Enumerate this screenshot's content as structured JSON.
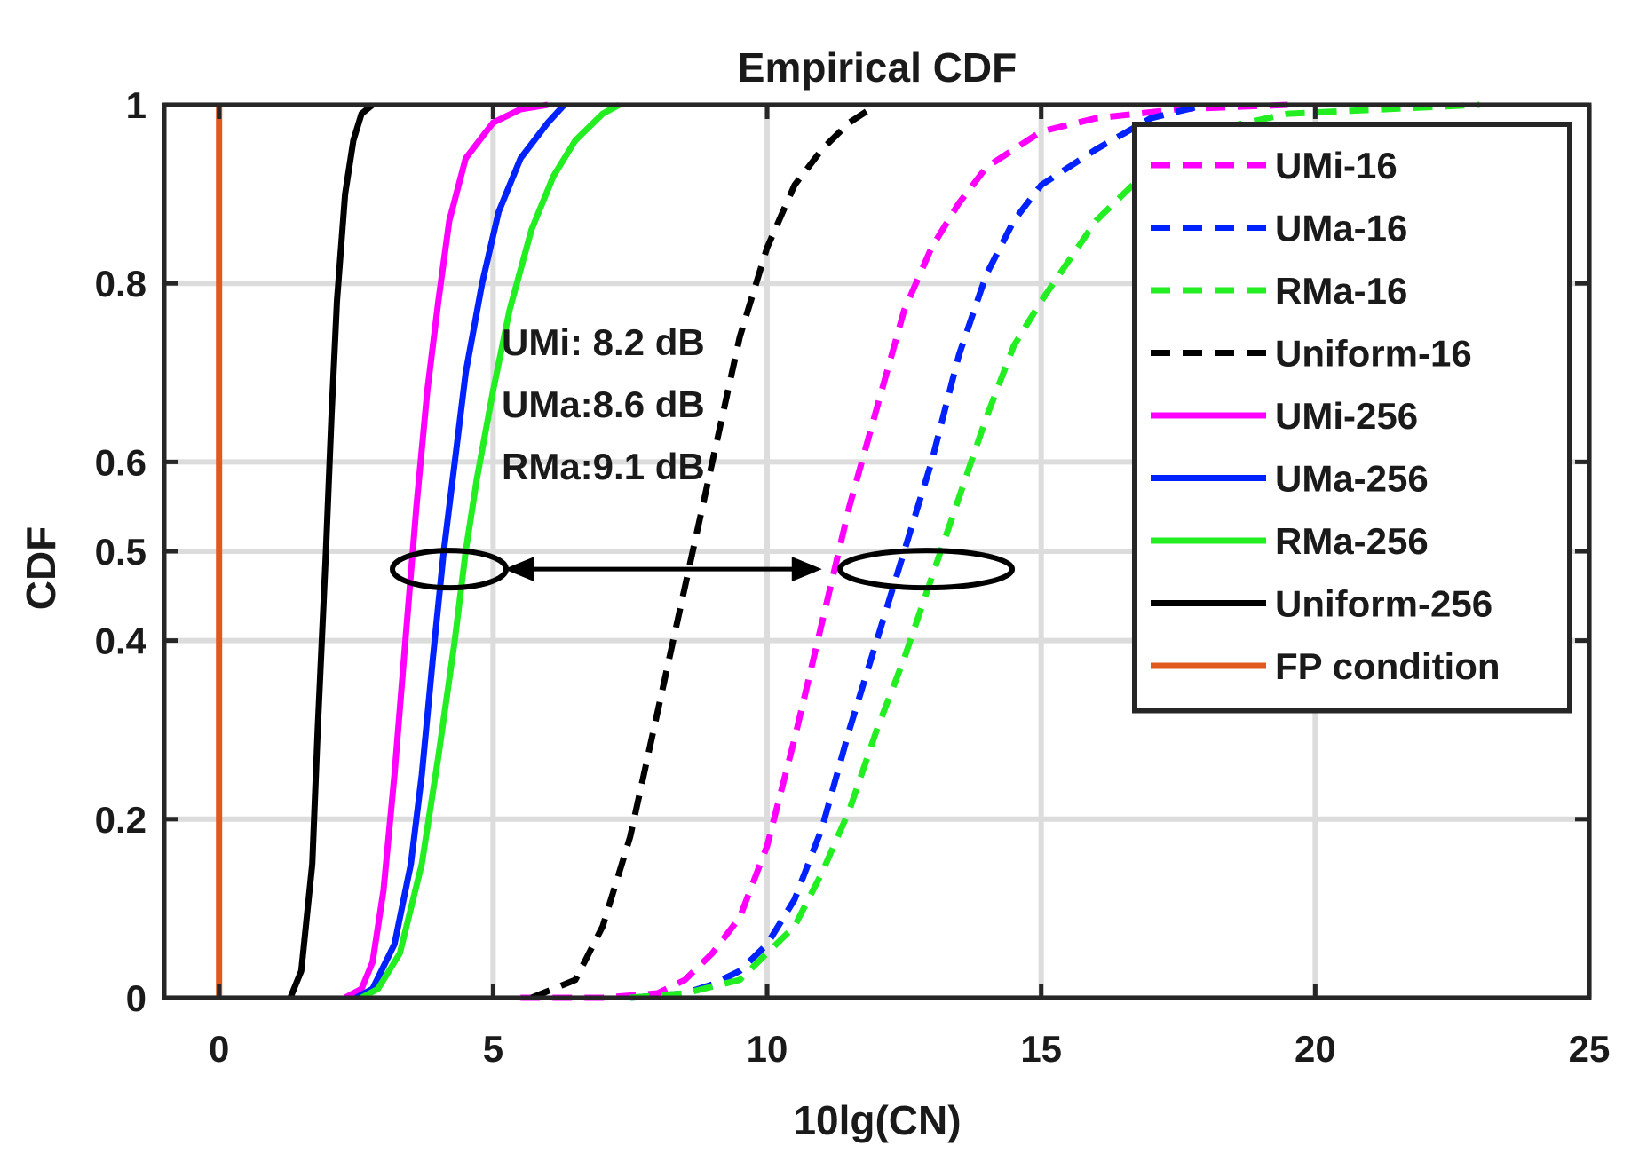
{
  "chart_data": {
    "type": "line",
    "title": "Empirical CDF",
    "xlabel": "10lg(CN)",
    "ylabel": "CDF",
    "xlim": [
      -1,
      25
    ],
    "ylim": [
      0,
      1
    ],
    "x_ticks": [
      0,
      5,
      10,
      15,
      20,
      25
    ],
    "y_ticks": [
      0,
      0.2,
      0.4,
      0.5,
      0.6,
      0.8,
      1
    ],
    "x_tick_labels": [
      "0",
      "5",
      "10",
      "15",
      "20",
      "25"
    ],
    "y_tick_labels": [
      "0",
      "0.2",
      "0.4",
      "0.5",
      "0.6",
      "0.8",
      "1"
    ],
    "grid": true,
    "legend_position": "top-right",
    "series": [
      {
        "name": "UMi-16",
        "color": "#ff00ff",
        "style": "dashed",
        "points": [
          [
            5.5,
            0
          ],
          [
            7.0,
            0
          ],
          [
            8.0,
            0.005
          ],
          [
            8.5,
            0.02
          ],
          [
            9.0,
            0.05
          ],
          [
            9.5,
            0.09
          ],
          [
            10.0,
            0.17
          ],
          [
            10.5,
            0.29
          ],
          [
            11.0,
            0.42
          ],
          [
            11.5,
            0.55
          ],
          [
            12.0,
            0.66
          ],
          [
            12.5,
            0.77
          ],
          [
            13.0,
            0.84
          ],
          [
            13.5,
            0.89
          ],
          [
            14.0,
            0.93
          ],
          [
            15.0,
            0.97
          ],
          [
            16.0,
            0.985
          ],
          [
            17.5,
            0.995
          ],
          [
            19.5,
            1.0
          ]
        ]
      },
      {
        "name": "UMa-16",
        "color": "#0022ff",
        "style": "dashed",
        "points": [
          [
            7.5,
            0
          ],
          [
            8.5,
            0.005
          ],
          [
            9.0,
            0.015
          ],
          [
            9.5,
            0.03
          ],
          [
            10.0,
            0.06
          ],
          [
            10.5,
            0.11
          ],
          [
            11.0,
            0.19
          ],
          [
            11.5,
            0.3
          ],
          [
            12.0,
            0.4
          ],
          [
            12.5,
            0.5
          ],
          [
            13.0,
            0.6
          ],
          [
            13.5,
            0.72
          ],
          [
            14.0,
            0.81
          ],
          [
            14.5,
            0.87
          ],
          [
            15.0,
            0.91
          ],
          [
            16.0,
            0.95
          ],
          [
            17.0,
            0.985
          ],
          [
            18.0,
            1.0
          ]
        ]
      },
      {
        "name": "RMa-16",
        "color": "#22ee22",
        "style": "dashed",
        "points": [
          [
            7.5,
            0
          ],
          [
            8.5,
            0.005
          ],
          [
            9.5,
            0.02
          ],
          [
            10.0,
            0.05
          ],
          [
            10.5,
            0.08
          ],
          [
            11.0,
            0.14
          ],
          [
            11.5,
            0.21
          ],
          [
            12.0,
            0.3
          ],
          [
            12.5,
            0.38
          ],
          [
            13.0,
            0.47
          ],
          [
            13.5,
            0.56
          ],
          [
            14.0,
            0.65
          ],
          [
            14.5,
            0.73
          ],
          [
            15.0,
            0.78
          ],
          [
            16.0,
            0.87
          ],
          [
            17.0,
            0.93
          ],
          [
            18.0,
            0.97
          ],
          [
            19.5,
            0.99
          ],
          [
            23.0,
            1.0
          ]
        ]
      },
      {
        "name": "Uniform-16",
        "color": "#000000",
        "style": "dashed",
        "points": [
          [
            5.7,
            0
          ],
          [
            6.5,
            0.02
          ],
          [
            7.0,
            0.08
          ],
          [
            7.5,
            0.18
          ],
          [
            8.0,
            0.32
          ],
          [
            8.5,
            0.46
          ],
          [
            9.0,
            0.6
          ],
          [
            9.5,
            0.74
          ],
          [
            10.0,
            0.84
          ],
          [
            10.5,
            0.91
          ],
          [
            11.0,
            0.95
          ],
          [
            11.5,
            0.98
          ],
          [
            12.0,
            1.0
          ]
        ]
      },
      {
        "name": "UMi-256",
        "color": "#ff00ff",
        "style": "solid",
        "points": [
          [
            2.3,
            0
          ],
          [
            2.6,
            0.01
          ],
          [
            2.8,
            0.04
          ],
          [
            3.0,
            0.12
          ],
          [
            3.2,
            0.25
          ],
          [
            3.4,
            0.4
          ],
          [
            3.6,
            0.55
          ],
          [
            3.8,
            0.68
          ],
          [
            4.0,
            0.78
          ],
          [
            4.2,
            0.87
          ],
          [
            4.5,
            0.94
          ],
          [
            5.0,
            0.98
          ],
          [
            5.5,
            0.995
          ],
          [
            6.0,
            1.0
          ]
        ]
      },
      {
        "name": "UMa-256",
        "color": "#0022ff",
        "style": "solid",
        "points": [
          [
            2.5,
            0
          ],
          [
            2.8,
            0.01
          ],
          [
            3.2,
            0.06
          ],
          [
            3.5,
            0.15
          ],
          [
            3.7,
            0.25
          ],
          [
            3.9,
            0.38
          ],
          [
            4.1,
            0.5
          ],
          [
            4.3,
            0.6
          ],
          [
            4.5,
            0.7
          ],
          [
            4.8,
            0.8
          ],
          [
            5.1,
            0.88
          ],
          [
            5.5,
            0.94
          ],
          [
            6.0,
            0.98
          ],
          [
            6.3,
            1.0
          ]
        ]
      },
      {
        "name": "RMa-256",
        "color": "#22ee22",
        "style": "solid",
        "points": [
          [
            2.6,
            0
          ],
          [
            2.9,
            0.01
          ],
          [
            3.3,
            0.05
          ],
          [
            3.7,
            0.15
          ],
          [
            4.0,
            0.27
          ],
          [
            4.3,
            0.4
          ],
          [
            4.5,
            0.5
          ],
          [
            4.7,
            0.58
          ],
          [
            5.0,
            0.68
          ],
          [
            5.3,
            0.77
          ],
          [
            5.7,
            0.86
          ],
          [
            6.1,
            0.92
          ],
          [
            6.5,
            0.96
          ],
          [
            7.0,
            0.99
          ],
          [
            7.3,
            1.0
          ]
        ]
      },
      {
        "name": "Uniform-256",
        "color": "#000000",
        "style": "solid",
        "points": [
          [
            1.3,
            0
          ],
          [
            1.5,
            0.03
          ],
          [
            1.7,
            0.15
          ],
          [
            1.8,
            0.3
          ],
          [
            1.95,
            0.5
          ],
          [
            2.05,
            0.65
          ],
          [
            2.15,
            0.78
          ],
          [
            2.3,
            0.9
          ],
          [
            2.45,
            0.96
          ],
          [
            2.6,
            0.99
          ],
          [
            2.8,
            1.0
          ]
        ]
      },
      {
        "name": "FP condition",
        "color": "#e05a1e",
        "style": "solid",
        "points": [
          [
            0,
            0
          ],
          [
            0,
            1
          ]
        ]
      }
    ],
    "annotations": {
      "lines": [
        "UMi: 8.2 dB",
        "UMa:8.6 dB",
        "RMa:9.1 dB"
      ],
      "left_ellipse": {
        "x": 4.2,
        "y": 0.48
      },
      "right_ellipse": {
        "x": 12.9,
        "y": 0.48
      },
      "arrow": {
        "x1": 5.2,
        "x2": 11.0,
        "y": 0.48
      }
    }
  }
}
